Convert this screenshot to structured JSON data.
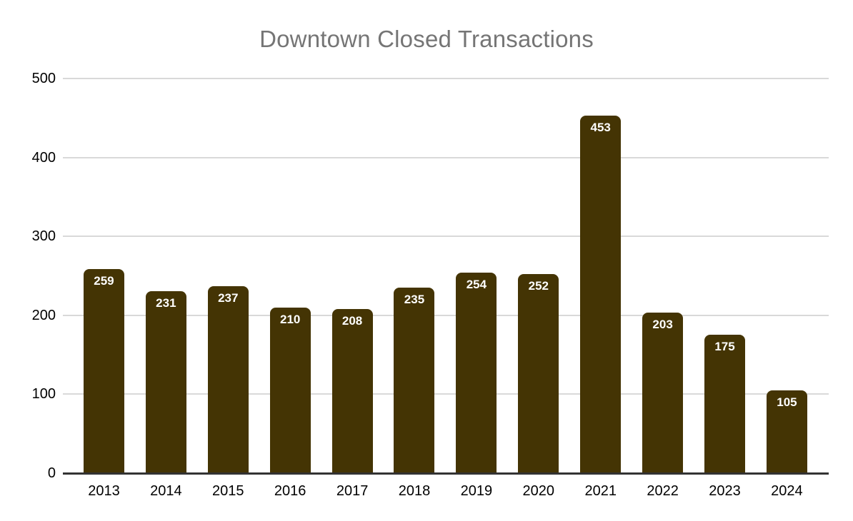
{
  "chart_data": {
    "type": "bar",
    "title": "Downtown Closed Transactions",
    "categories": [
      "2013",
      "2014",
      "2015",
      "2016",
      "2017",
      "2018",
      "2019",
      "2020",
      "2021",
      "2022",
      "2023",
      "2024"
    ],
    "values": [
      259,
      231,
      237,
      210,
      208,
      235,
      254,
      252,
      453,
      203,
      175,
      105
    ],
    "xlabel": "",
    "ylabel": "",
    "ylim": [
      0,
      500
    ],
    "yticks": [
      0,
      100,
      200,
      300,
      400,
      500
    ],
    "grid": true,
    "legend": "none",
    "data_labels": "inside-top"
  },
  "colors": {
    "title_text": "#757575",
    "bar_fill": "#443404",
    "bar_label_text": "#ffffff",
    "axis_label_text": "#000000",
    "gridline": "#d9d9d9",
    "baseline": "#333333",
    "background": "#ffffff"
  }
}
